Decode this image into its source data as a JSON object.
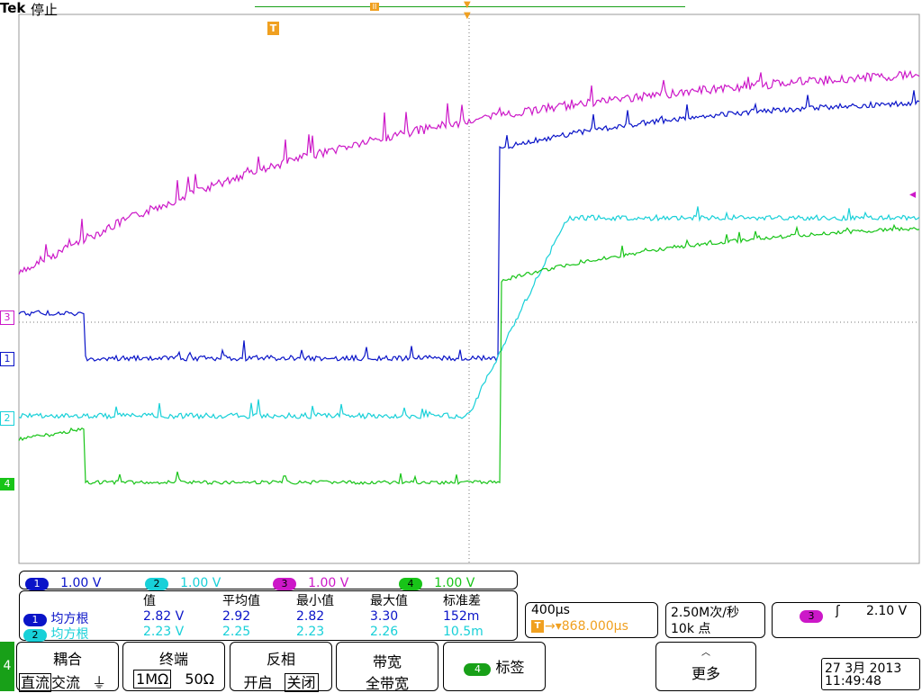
{
  "header": {
    "brand": "Tek",
    "status": "停止"
  },
  "colors": {
    "ch1": "#0a14c8",
    "ch2": "#18d0d8",
    "ch3": "#cc18c8",
    "ch4": "#18c418",
    "trigger": "#f0a020",
    "grid": "#888888"
  },
  "markers": {
    "trigger_pos": "T",
    "ch3": "3",
    "ch1": "1",
    "ch2": "2",
    "ch4": "4",
    "trigger_level_icon": "left-arrow"
  },
  "channels": [
    {
      "id": "1",
      "scale": "1.00 V"
    },
    {
      "id": "2",
      "scale": "1.00 V"
    },
    {
      "id": "3",
      "scale": "1.00 V"
    },
    {
      "id": "4",
      "scale": "1.00 V"
    }
  ],
  "measurements": {
    "headers": [
      "值",
      "平均值",
      "最小值",
      "最大值",
      "标准差"
    ],
    "rows": [
      {
        "ch": "1",
        "type": "均方根",
        "value": "2.82 V",
        "mean": "2.92",
        "min": "2.82",
        "max": "3.30",
        "std": "152m"
      },
      {
        "ch": "2",
        "type": "均方根",
        "value": "2.23 V",
        "mean": "2.25",
        "min": "2.23",
        "max": "2.26",
        "std": "10.5m"
      }
    ]
  },
  "timebase": {
    "scale": "400µs",
    "delay": "868.000µs",
    "rate": "2.50M次/秒",
    "points": "10k 点"
  },
  "trigger": {
    "source": "3",
    "slope": "rising",
    "level": "2.10 V"
  },
  "menu": {
    "channel_tab": "4",
    "coupling": {
      "label": "耦合",
      "options": [
        "直流",
        "交流"
      ],
      "selected": "直流"
    },
    "termination": {
      "label": "终端",
      "options": [
        "1MΩ",
        "50Ω"
      ],
      "selected": "1MΩ"
    },
    "invert": {
      "label": "反相",
      "options": [
        "开启",
        "关闭"
      ],
      "selected": "关闭"
    },
    "bandwidth": {
      "label": "带宽",
      "value": "全带宽"
    },
    "label_btn": {
      "ch": "4",
      "label": "标签"
    },
    "more": "更多"
  },
  "datetime": {
    "date": "27 3月 2013",
    "time": "11:49:48"
  }
}
